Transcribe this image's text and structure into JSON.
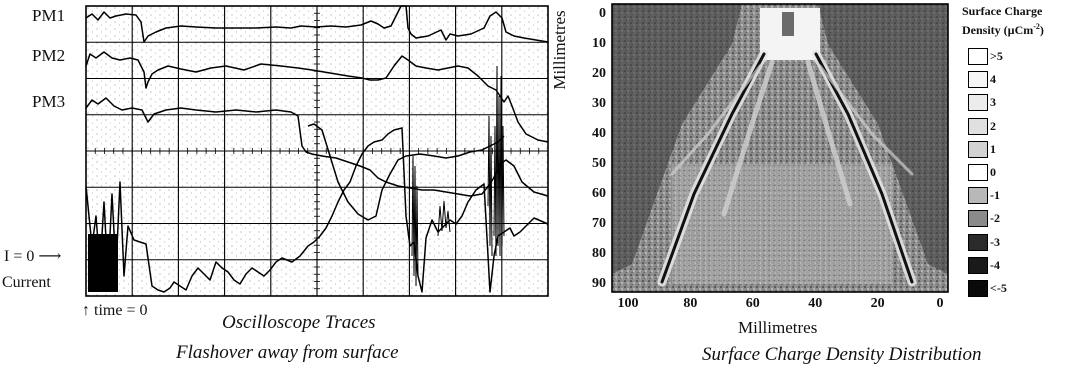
{
  "oscilloscope": {
    "trace_labels": [
      "PM1",
      "PM2",
      "PM3"
    ],
    "zero_label": "I = 0",
    "current_label": "Current",
    "time_marker_label": "time = 0",
    "caption_line1": "Oscilloscope Traces",
    "caption_line2": "Flashover away from surface"
  },
  "charge_map": {
    "y_axis_title": "Millimetres",
    "x_axis_title": "Millimetres",
    "y_ticks": [
      "0",
      "10",
      "20",
      "30",
      "40",
      "50",
      "60",
      "70",
      "80",
      "90"
    ],
    "x_ticks": [
      "100",
      "80",
      "60",
      "40",
      "20",
      "0"
    ],
    "legend_title_line1": "Surface Charge",
    "legend_title_line2": "Density (µCm",
    "legend_title_sup": "-2",
    "legend_title_end": ")",
    "legend_items": [
      {
        "label": ">5",
        "color": "#ffffff"
      },
      {
        "label": "4",
        "color": "#f6f6f6"
      },
      {
        "label": "3",
        "color": "#ececec"
      },
      {
        "label": "2",
        "color": "#e0e0e0"
      },
      {
        "label": "1",
        "color": "#d2d2d2"
      },
      {
        "label": "0",
        "color": "#ffffff"
      },
      {
        "label": "-1",
        "color": "#b8b8b8"
      },
      {
        "label": "-2",
        "color": "#8a8a8a"
      },
      {
        "label": "-3",
        "color": "#2a2a2a"
      },
      {
        "label": "-4",
        "color": "#1a1a1a"
      },
      {
        "label": "<-5",
        "color": "#0a0a0a"
      }
    ],
    "caption": "Surface Charge Density Distribution"
  }
}
